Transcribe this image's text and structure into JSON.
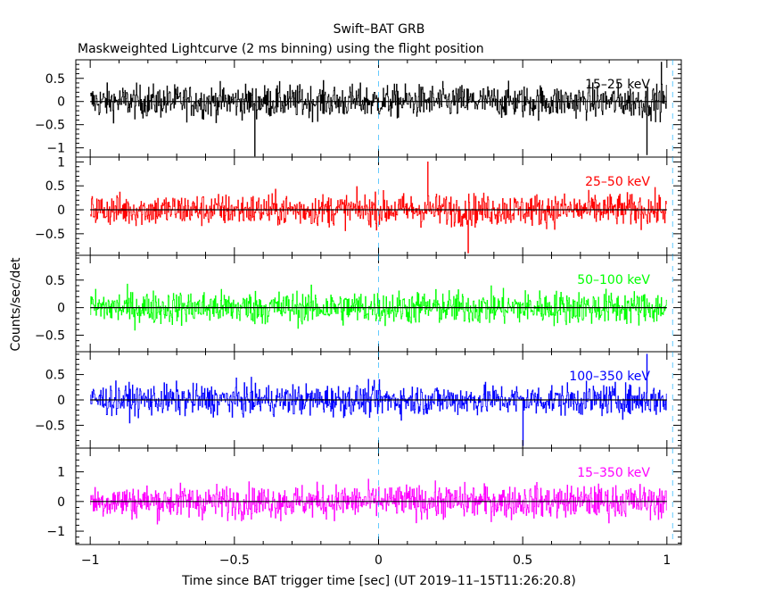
{
  "chart_data": {
    "type": "line",
    "title": "Swift–BAT GRB",
    "subtitle": "Maskweighted Lightcurve (2 ms binning) using the flight position",
    "xlabel": "Time since BAT trigger time [sec] (UT 2019–11–15T11:26:20.8)",
    "ylabel": "Counts/sec/det",
    "xlim": [
      -1.05,
      1.05
    ],
    "xticks": [
      -1,
      -0.5,
      0,
      0.5,
      1
    ],
    "xtick_labels": [
      "−1",
      "−0.5",
      "0",
      "0.5",
      "1"
    ],
    "bin_width_sec": 0.002,
    "series_range_x": [
      -1,
      1
    ],
    "markers": [
      {
        "name": "trigger",
        "x": 0,
        "style": "dashed"
      },
      {
        "name": "end",
        "x": 1.02,
        "style": "dashed"
      }
    ],
    "panels": [
      {
        "band": "15–25 keV",
        "color": "#000000",
        "ylim": [
          -1.2,
          0.9
        ],
        "yticks": [
          0.5,
          0,
          -0.5,
          -1
        ],
        "ytick_labels": [
          "0.5",
          "0",
          "−0.5",
          "−1"
        ],
        "noise_amplitude": 0.35,
        "spikes": [
          [
            -0.43,
            -1.2
          ],
          [
            0.93,
            -1.15
          ],
          [
            0.98,
            0.85
          ]
        ]
      },
      {
        "band": "25–50 keV",
        "color": "#ff0000",
        "ylim": [
          -0.95,
          1.1
        ],
        "yticks": [
          1,
          0.5,
          0,
          -0.5
        ],
        "ytick_labels": [
          "1",
          "0.5",
          "0",
          "−0.5"
        ],
        "noise_amplitude": 0.33,
        "spikes": [
          [
            0.17,
            1.0
          ],
          [
            0.31,
            -0.9
          ]
        ]
      },
      {
        "band": "50–100 keV",
        "color": "#00ff00",
        "ylim": [
          -0.8,
          0.95
        ],
        "yticks": [
          0.5,
          0,
          -0.5
        ],
        "ytick_labels": [
          "0.5",
          "0",
          "−0.5"
        ],
        "noise_amplitude": 0.3,
        "spikes": []
      },
      {
        "band": "100–350 keV",
        "color": "#0000ff",
        "ylim": [
          -0.95,
          0.95
        ],
        "yticks": [
          0.5,
          0,
          -0.5
        ],
        "ytick_labels": [
          "0.5",
          "0",
          "−0.5"
        ],
        "noise_amplitude": 0.3,
        "spikes": [
          [
            0.93,
            0.9
          ],
          [
            0.5,
            -0.9
          ]
        ]
      },
      {
        "band": "15–350 keV",
        "color": "#ff00ff",
        "ylim": [
          -1.45,
          1.8
        ],
        "yticks": [
          1,
          0,
          -1
        ],
        "ytick_labels": [
          "1",
          "0",
          "−1"
        ],
        "noise_amplitude": 0.55,
        "spikes": []
      }
    ]
  }
}
